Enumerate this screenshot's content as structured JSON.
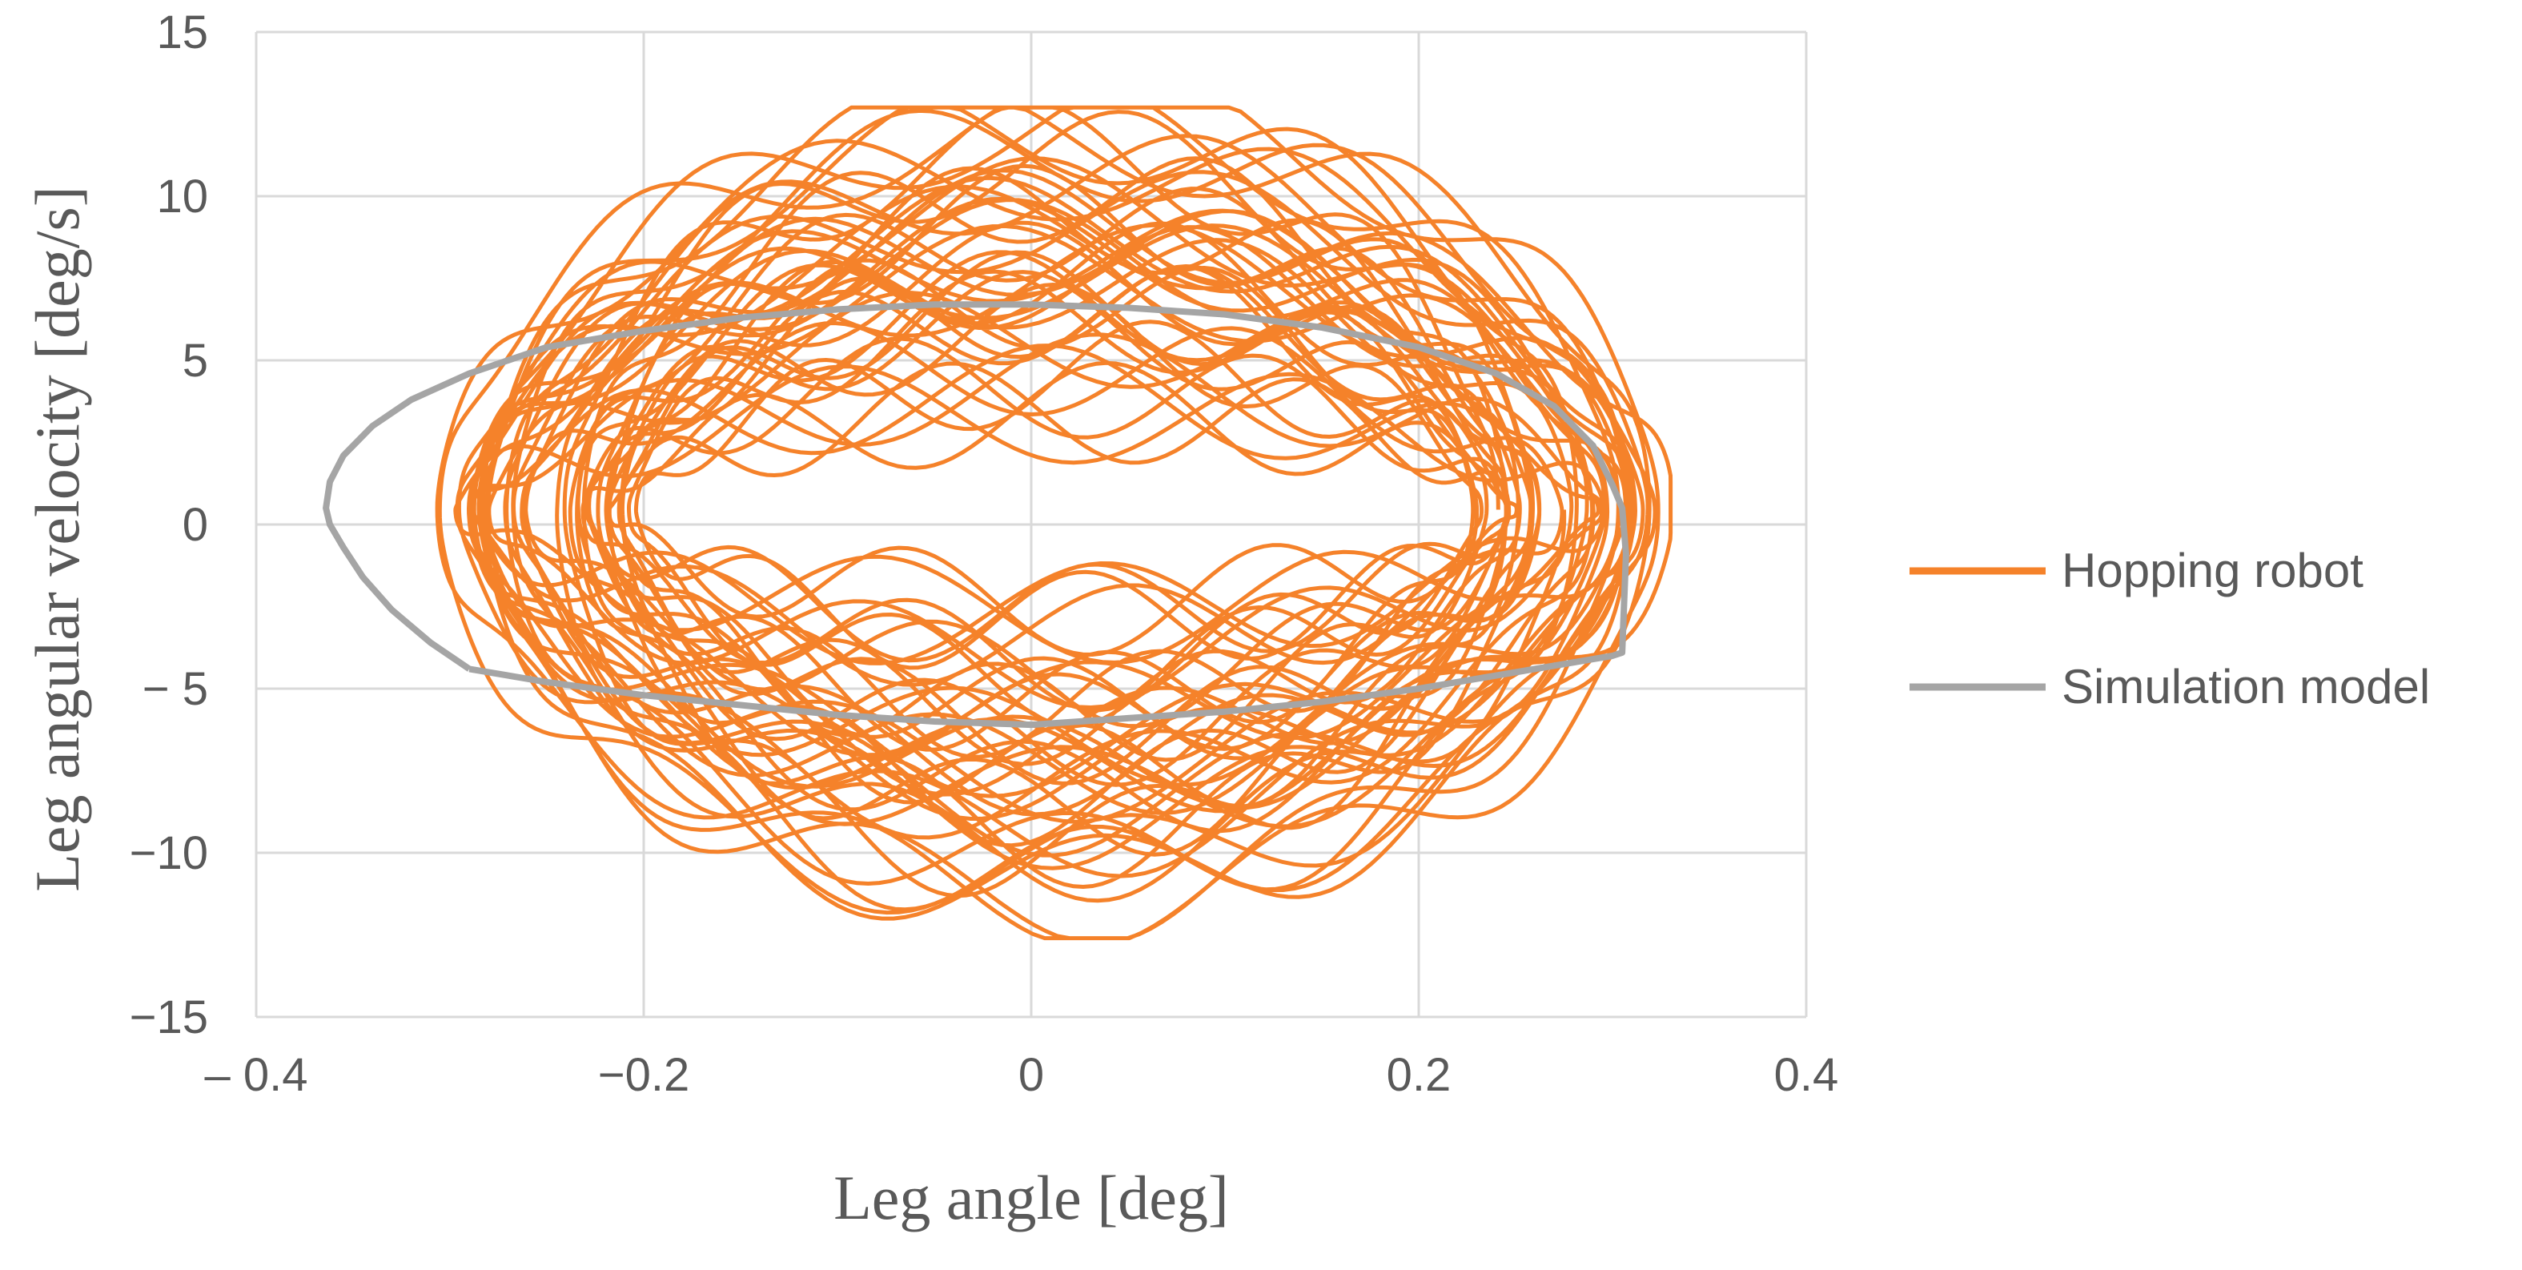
{
  "chart_data": {
    "type": "line",
    "xlabel": "Leg angle [deg]",
    "ylabel": "Leg angular velocity [deg/s]",
    "xlim": [
      -0.4,
      0.4
    ],
    "ylim": [
      -15,
      15
    ],
    "x_ticks": [
      -0.4,
      -0.2,
      0,
      0.2,
      0.4
    ],
    "x_tick_labels": [
      "– 0.4",
      "−0.2",
      "0",
      "0.2",
      "0.4"
    ],
    "y_ticks": [
      15,
      10,
      5,
      0,
      -5,
      -10,
      -15
    ],
    "y_tick_labels": [
      "15",
      "10",
      "5",
      "0",
      "− 5",
      "−10",
      "−15"
    ],
    "grid": true,
    "legend_position": "right",
    "series": [
      {
        "name": "Hopping robot",
        "color": "#F5822A",
        "description_points": {
          "x_range": [
            -0.31,
            0.33
          ],
          "outer_upper_y_peak": 12.7,
          "outer_lower_y_min": -12.6,
          "inner_upper_y": 2.2,
          "inner_lower_y": -1.3,
          "inner_x_range": [
            -0.23,
            0.25
          ]
        }
      },
      {
        "name": "Simulation model",
        "color": "#A5A5A5",
        "x": [
          -0.29,
          -0.31,
          -0.33,
          -0.345,
          -0.355,
          -0.362,
          -0.364,
          -0.362,
          -0.355,
          -0.34,
          -0.32,
          -0.29,
          -0.25,
          -0.2,
          -0.15,
          -0.1,
          -0.05,
          0.0,
          0.05,
          0.1,
          0.15,
          0.2,
          0.24,
          0.27,
          0.29,
          0.3,
          0.305,
          0.307,
          0.305,
          0.3,
          0.29,
          0.27,
          0.24,
          0.2,
          0.15,
          0.1,
          0.05,
          0.0,
          -0.05,
          -0.1,
          -0.15,
          -0.2,
          -0.25,
          -0.29
        ],
        "y": [
          -4.4,
          -3.6,
          -2.6,
          -1.6,
          -0.7,
          0.0,
          0.5,
          1.3,
          2.1,
          3.0,
          3.8,
          4.6,
          5.4,
          5.9,
          6.3,
          6.55,
          6.7,
          6.7,
          6.6,
          6.4,
          6.0,
          5.4,
          4.6,
          3.6,
          2.4,
          1.2,
          0.5,
          -0.9,
          -3.9,
          -4.0,
          -4.1,
          -4.3,
          -4.6,
          -5.0,
          -5.4,
          -5.7,
          -5.9,
          -6.1,
          -6.0,
          -5.8,
          -5.5,
          -5.2,
          -4.8,
          -4.4
        ]
      }
    ]
  }
}
